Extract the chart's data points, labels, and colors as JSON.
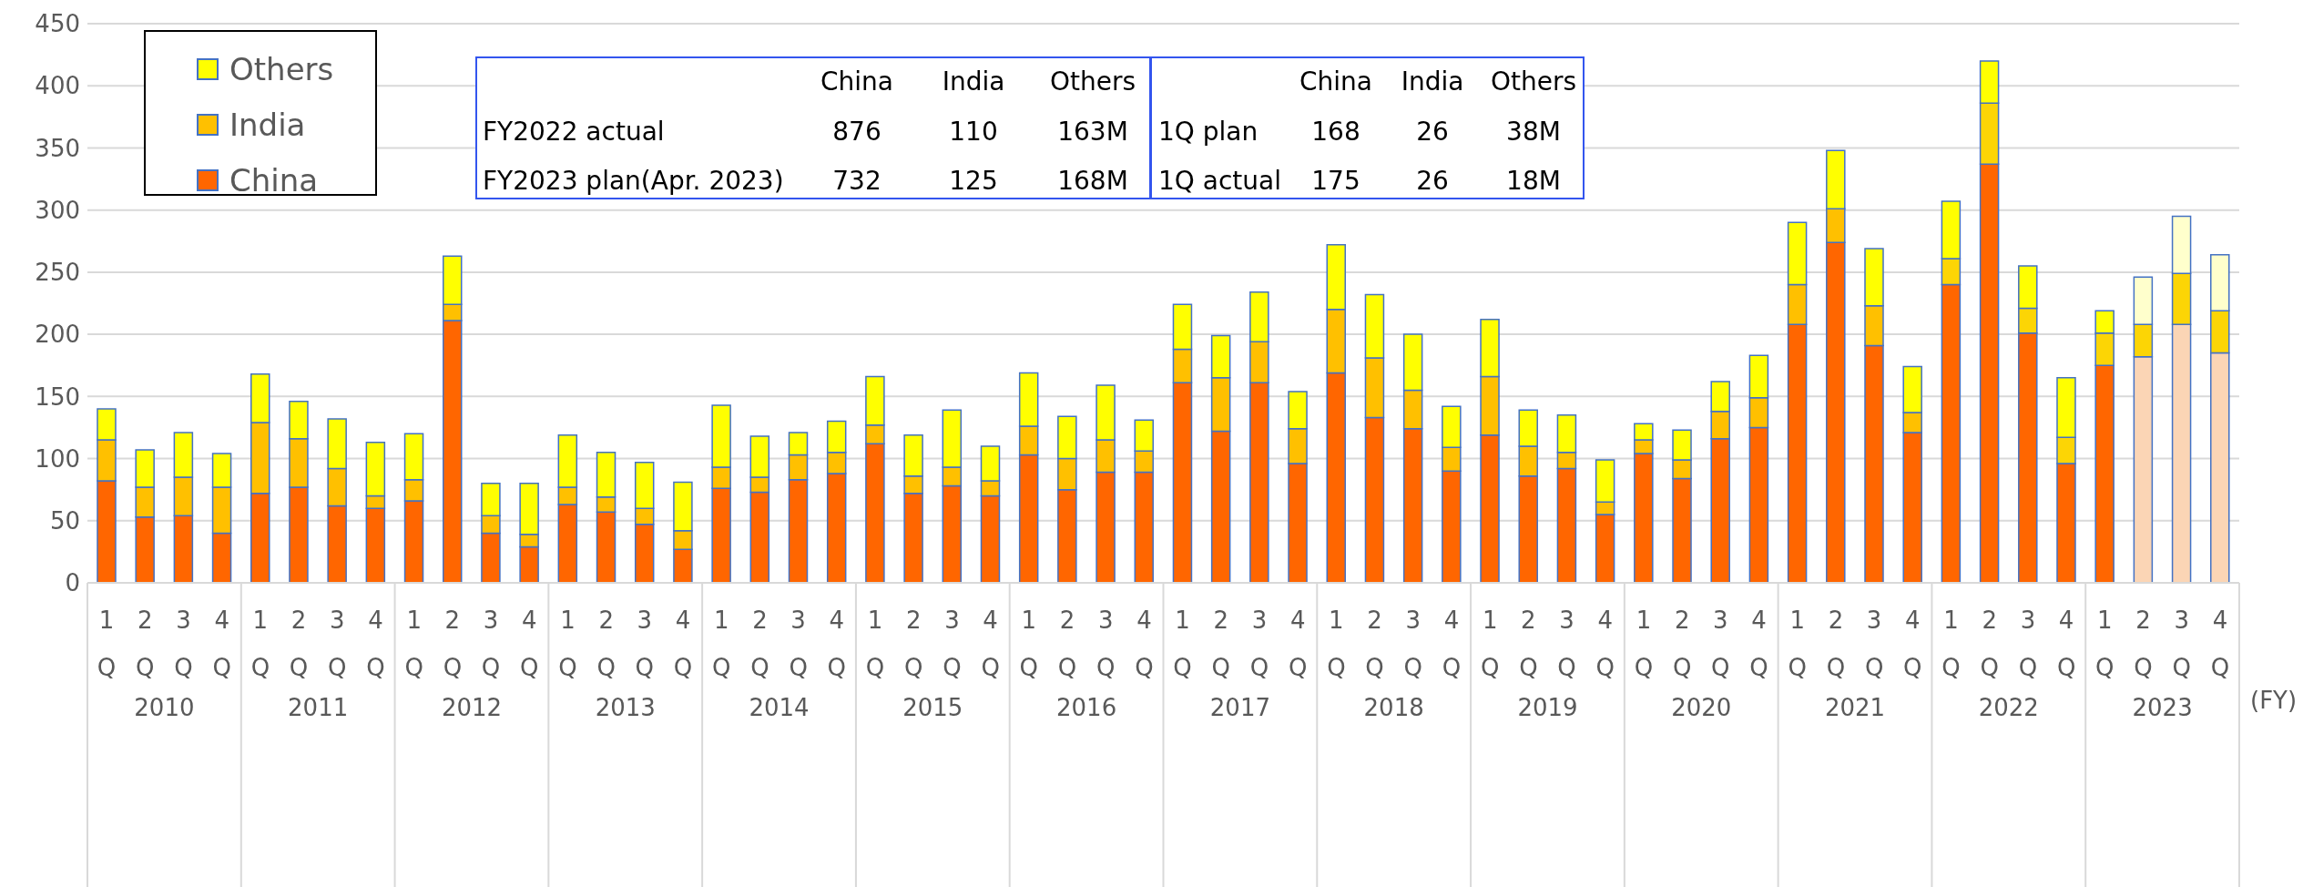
{
  "chart_data": {
    "type": "bar",
    "stacked": true,
    "categories": [
      "1Q",
      "2Q",
      "3Q",
      "4Q",
      "1Q",
      "2Q",
      "3Q",
      "4Q",
      "1Q",
      "2Q",
      "3Q",
      "4Q",
      "1Q",
      "2Q",
      "3Q",
      "4Q",
      "1Q",
      "2Q",
      "3Q",
      "4Q",
      "1Q",
      "2Q",
      "3Q",
      "4Q",
      "1Q",
      "2Q",
      "3Q",
      "4Q",
      "1Q",
      "2Q",
      "3Q",
      "4Q",
      "1Q",
      "2Q",
      "3Q",
      "4Q",
      "1Q",
      "2Q",
      "3Q",
      "4Q",
      "1Q",
      "2Q",
      "3Q",
      "4Q",
      "1Q",
      "2Q",
      "3Q",
      "4Q",
      "1Q",
      "2Q",
      "3Q",
      "4Q",
      "1Q",
      "2Q",
      "3Q",
      "4Q"
    ],
    "series": [
      {
        "name": "China",
        "color": "#ff6600",
        "values": [
          82,
          53,
          54,
          40,
          72,
          77,
          62,
          60,
          66,
          211,
          40,
          29,
          63,
          57,
          47,
          27,
          76,
          73,
          83,
          88,
          112,
          72,
          78,
          70,
          103,
          75,
          89,
          89,
          161,
          122,
          161,
          96,
          169,
          133,
          124,
          90,
          119,
          86,
          92,
          55,
          104,
          84,
          116,
          125,
          208,
          274,
          191,
          121,
          240,
          337,
          201,
          96,
          175,
          182,
          208,
          185
        ],
        "colors": [
          "#ff6600",
          "#ff6600",
          "#ff6600",
          "#ff6600",
          "#ff6600",
          "#ff6600",
          "#ff6600",
          "#ff6600",
          "#ff6600",
          "#ff6600",
          "#ff6600",
          "#ff6600",
          "#ff6600",
          "#ff6600",
          "#ff6600",
          "#ff6600",
          "#ff6600",
          "#ff6600",
          "#ff6600",
          "#ff6600",
          "#ff6600",
          "#ff6600",
          "#ff6600",
          "#ff6600",
          "#ff6600",
          "#ff6600",
          "#ff6600",
          "#ff6600",
          "#ff6600",
          "#ff6600",
          "#ff6600",
          "#ff6600",
          "#ff6600",
          "#ff6600",
          "#ff6600",
          "#ff6600",
          "#ff6600",
          "#ff6600",
          "#ff6600",
          "#ff6600",
          "#ff6600",
          "#ff6600",
          "#ff6600",
          "#ff6600",
          "#ff6600",
          "#ff6600",
          "#ff6600",
          "#ff6600",
          "#ff6600",
          "#ff6600",
          "#ff6600",
          "#ff6600",
          "#ff6600",
          "#fbd5b5",
          "#fbd5b5",
          "#fbd5b5"
        ]
      },
      {
        "name": "India",
        "color": "#ffc000",
        "values": [
          33,
          24,
          31,
          37,
          57,
          39,
          30,
          10,
          17,
          13,
          14,
          10,
          14,
          12,
          13,
          15,
          17,
          12,
          20,
          17,
          15,
          14,
          15,
          12,
          23,
          25,
          26,
          17,
          27,
          43,
          33,
          28,
          51,
          48,
          31,
          19,
          47,
          24,
          13,
          10,
          11,
          15,
          22,
          24,
          32,
          27,
          32,
          16,
          21,
          49,
          20,
          21,
          26,
          26,
          41,
          34
        ],
        "colors": [
          "#ffc000",
          "#ffc000",
          "#ffc000",
          "#ffc000",
          "#ffc000",
          "#ffc000",
          "#ffc000",
          "#ffc000",
          "#ffc000",
          "#ffc000",
          "#ffc000",
          "#ffc000",
          "#ffc000",
          "#ffc000",
          "#ffc000",
          "#ffc000",
          "#ffc000",
          "#ffc000",
          "#ffc000",
          "#ffc000",
          "#ffc000",
          "#ffc000",
          "#ffc000",
          "#ffc000",
          "#ffc000",
          "#ffc000",
          "#ffc000",
          "#ffc000",
          "#ffc000",
          "#ffc000",
          "#ffc000",
          "#ffc000",
          "#ffc000",
          "#ffc000",
          "#ffc000",
          "#ffc000",
          "#ffc000",
          "#ffc000",
          "#ffc000",
          "#ffc000",
          "#ffc000",
          "#ffc000",
          "#ffc000",
          "#ffc000",
          "#ffc000",
          "#ffc000",
          "#ffc000",
          "#ffc000",
          "#fcd505",
          "#fcd505",
          "#fcd505",
          "#fcd505",
          "#fcd505",
          "#fcd505",
          "#fcd505",
          "#fcd505"
        ]
      },
      {
        "name": "Others",
        "color": "#ffff00",
        "values": [
          25,
          30,
          36,
          27,
          39,
          30,
          40,
          43,
          37,
          39,
          26,
          41,
          42,
          36,
          37,
          39,
          50,
          33,
          18,
          25,
          39,
          33,
          46,
          28,
          43,
          34,
          44,
          25,
          36,
          34,
          40,
          30,
          52,
          51,
          45,
          33,
          46,
          29,
          30,
          34,
          13,
          24,
          24,
          34,
          50,
          47,
          46,
          37,
          46,
          34,
          34,
          48,
          18,
          38,
          46,
          45
        ],
        "colors": [
          "#ffff00",
          "#ffff00",
          "#ffff00",
          "#ffff00",
          "#ffff00",
          "#ffff00",
          "#ffff00",
          "#ffff00",
          "#ffff00",
          "#ffff00",
          "#ffff00",
          "#ffff00",
          "#ffff00",
          "#ffff00",
          "#ffff00",
          "#ffff00",
          "#ffff00",
          "#ffff00",
          "#ffff00",
          "#ffff00",
          "#ffff00",
          "#ffff00",
          "#ffff00",
          "#ffff00",
          "#ffff00",
          "#ffff00",
          "#ffff00",
          "#ffff00",
          "#ffff00",
          "#ffff00",
          "#ffff00",
          "#ffff00",
          "#ffff00",
          "#ffff00",
          "#ffff00",
          "#ffff00",
          "#ffff00",
          "#ffff00",
          "#ffff00",
          "#ffff00",
          "#ffff00",
          "#ffff00",
          "#ffff00",
          "#ffff00",
          "#ffff00",
          "#ffff00",
          "#ffff00",
          "#ffff00",
          "#ffff00",
          "#ffff00",
          "#ffff00",
          "#ffff00",
          "#ffff00",
          "#ffffcc",
          "#ffffcc",
          "#ffffcc"
        ]
      }
    ],
    "ylim": [
      0,
      450
    ],
    "yticks": [
      0,
      50,
      100,
      150,
      200,
      250,
      300,
      350,
      400,
      450
    ],
    "grid": "y",
    "legend": "top left",
    "annotations": [
      "2010",
      "2011",
      "2012",
      "2013",
      "2014",
      "2015",
      "2016",
      "2017",
      "2018",
      "2019",
      "2020",
      "2021",
      "2022",
      "2023",
      "(FY)",
      "China",
      "India",
      "Others",
      "FY2022 actual",
      "876",
      "110",
      "163M",
      "FY2023 plan(Apr. 2023)",
      "732",
      "125",
      "168M",
      "China",
      "India",
      "Others",
      "1Q plan",
      "168",
      "26",
      "38M",
      "1Q actual",
      "175",
      "26",
      "18M"
    ]
  }
}
